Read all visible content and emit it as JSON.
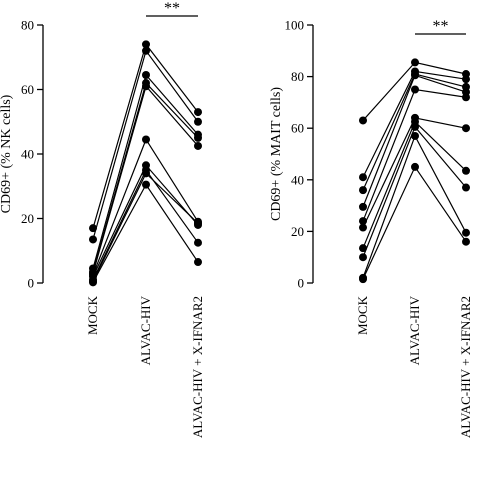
{
  "chart_data": [
    {
      "type": "line",
      "ylabel": "CD69+ (% NK cells)",
      "categories": [
        "MOCK",
        "ALVAC-HIV",
        "ALVAC-HIV + X-IFNAR2"
      ],
      "ylim": [
        0,
        80
      ],
      "yticks": [
        0,
        20,
        40,
        60,
        80
      ],
      "significance": {
        "label": "**",
        "between": [
          "ALVAC-HIV",
          "ALVAC-HIV + X-IFNAR2"
        ]
      },
      "series": [
        {
          "values": [
            17,
            74,
            53
          ]
        },
        {
          "values": [
            13.5,
            72,
            50
          ]
        },
        {
          "values": [
            4.5,
            64.5,
            46
          ]
        },
        {
          "values": [
            3.5,
            62,
            45
          ]
        },
        {
          "values": [
            3,
            61,
            42.5
          ]
        },
        {
          "values": [
            2.5,
            44.5,
            19
          ]
        },
        {
          "values": [
            2,
            36.5,
            18
          ]
        },
        {
          "values": [
            1,
            35,
            12.5
          ]
        },
        {
          "values": [
            0.5,
            34,
            18.5
          ]
        },
        {
          "values": [
            0.2,
            30.5,
            6.5
          ]
        }
      ]
    },
    {
      "type": "line",
      "ylabel": "CD69+ (% MAIT cells)",
      "categories": [
        "MOCK",
        "ALVAC-HIV",
        "ALVAC-HIV + X-IFNAR2"
      ],
      "ylim": [
        0,
        100
      ],
      "yticks": [
        0,
        20,
        40,
        60,
        80,
        100
      ],
      "significance": {
        "label": "**",
        "between": [
          "ALVAC-HIV",
          "ALVAC-HIV + X-IFNAR2"
        ]
      },
      "series": [
        {
          "values": [
            63,
            85.5,
            81
          ]
        },
        {
          "values": [
            41,
            82,
            79
          ]
        },
        {
          "values": [
            36,
            81,
            76
          ]
        },
        {
          "values": [
            29.5,
            80.5,
            74
          ]
        },
        {
          "values": [
            24,
            75,
            72
          ]
        },
        {
          "values": [
            21.5,
            64,
            60
          ]
        },
        {
          "values": [
            13.5,
            62.5,
            43.5
          ]
        },
        {
          "values": [
            10,
            60.5,
            37
          ]
        },
        {
          "values": [
            2,
            57,
            19.5
          ]
        },
        {
          "values": [
            1.5,
            45,
            16
          ]
        }
      ]
    }
  ]
}
